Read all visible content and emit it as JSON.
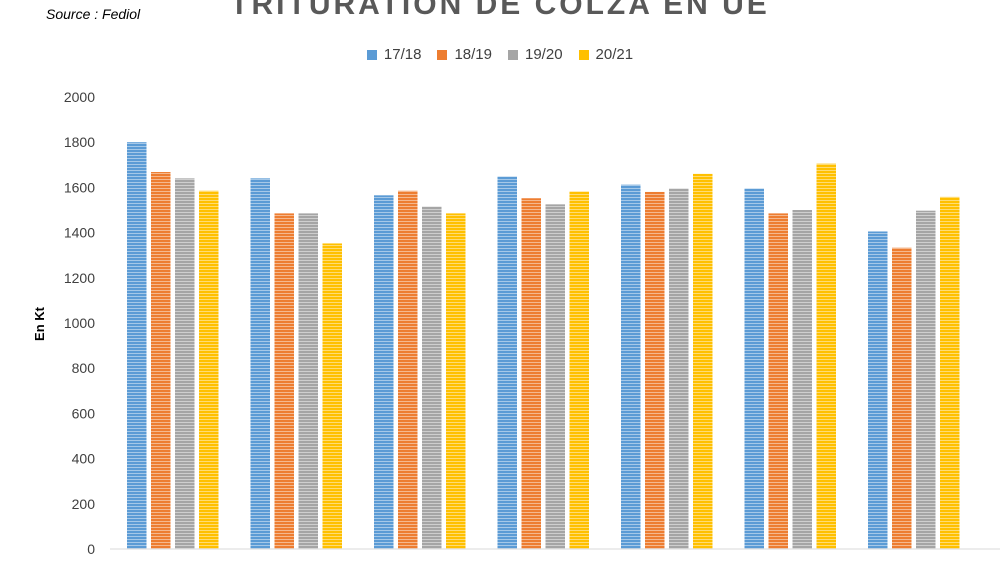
{
  "source": "Source : Fediol",
  "chart_data": {
    "type": "bar",
    "title": "TRITURATION DE COLZA EN UE",
    "xlabel": "",
    "ylabel": "En Kt",
    "ylim": [
      0,
      2000
    ],
    "yticks": [
      0,
      200,
      400,
      600,
      800,
      1000,
      1200,
      1400,
      1600,
      1800,
      2000
    ],
    "categories": [
      "",
      "",
      "",
      "",
      "",
      "",
      ""
    ],
    "legend_position": "top-center",
    "grid": false,
    "series": [
      {
        "name": "17/18",
        "color": "#5B9BD5",
        "values": [
          1800,
          1640,
          1565,
          1648,
          1612,
          1595,
          1405
        ]
      },
      {
        "name": "18/19",
        "color": "#ED7D31",
        "values": [
          1668,
          1485,
          1585,
          1552,
          1580,
          1485,
          1333
        ]
      },
      {
        "name": "19/20",
        "color": "#A5A5A5",
        "values": [
          1640,
          1485,
          1515,
          1525,
          1595,
          1500,
          1497
        ]
      },
      {
        "name": "20/21",
        "color": "#FFC000",
        "values": [
          1585,
          1352,
          1485,
          1582,
          1660,
          1705,
          1558
        ]
      }
    ]
  }
}
